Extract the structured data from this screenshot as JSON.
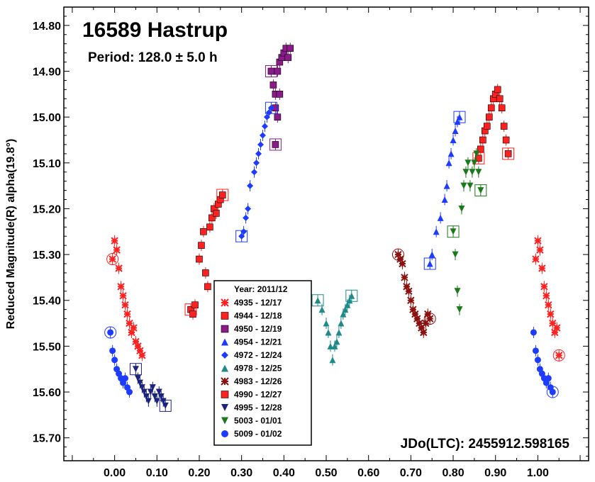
{
  "chart_data": {
    "type": "scatter",
    "title": "16589 Hastrup",
    "subtitle": "Period: 128.0 ± 5.0 h",
    "annotation": "JDo(LTC): 2455912.598165",
    "xlabel": "",
    "ylabel": "Reduced Magnitude(R) alpha(19.8°)",
    "xlim": [
      -0.12,
      1.12
    ],
    "ylim": [
      15.75,
      14.76
    ],
    "y_inverted": true,
    "x_ticks": [
      "0.00",
      "0.10",
      "0.20",
      "0.30",
      "0.40",
      "0.50",
      "0.60",
      "0.70",
      "0.80",
      "0.90",
      "1.00"
    ],
    "y_ticks": [
      "14.80",
      "14.90",
      "15.00",
      "15.10",
      "15.20",
      "15.30",
      "15.40",
      "15.50",
      "15.60",
      "15.70"
    ],
    "legend_title": "Year: 2011/12",
    "legend_position": "bottom-center",
    "series": [
      {
        "name": "4935 - 12/17",
        "color": "#ff2020",
        "marker": "x",
        "x": [
          -0.005,
          0.0,
          0.005,
          0.01,
          0.015,
          0.02,
          0.025,
          0.03,
          0.035,
          0.04,
          0.045,
          0.05,
          0.055,
          0.06,
          0.065,
          0.995,
          1.0,
          1.005,
          1.01,
          1.015,
          1.02,
          1.025,
          1.03,
          1.035,
          1.04,
          1.045,
          1.05
        ],
        "y": [
          15.31,
          15.27,
          15.29,
          15.33,
          15.37,
          15.39,
          15.41,
          15.43,
          15.45,
          15.47,
          15.46,
          15.49,
          15.5,
          15.51,
          15.52,
          15.31,
          15.27,
          15.29,
          15.33,
          15.37,
          15.39,
          15.41,
          15.43,
          15.45,
          15.47,
          15.46,
          15.52
        ]
      },
      {
        "name": "4944 - 12/18",
        "color": "#ff2020",
        "marker": "square",
        "x": [
          0.18,
          0.185,
          0.19,
          0.2,
          0.205,
          0.21,
          0.215,
          0.22,
          0.225,
          0.23,
          0.235,
          0.24,
          0.245,
          0.25,
          0.255
        ],
        "y": [
          15.42,
          15.43,
          15.41,
          15.31,
          15.28,
          15.25,
          15.34,
          15.37,
          15.24,
          15.22,
          15.2,
          15.21,
          15.19,
          15.18,
          15.17
        ]
      },
      {
        "name": "4950 - 12/19",
        "color": "#8b1a8b",
        "marker": "square",
        "x": [
          0.37,
          0.375,
          0.38,
          0.38,
          0.385,
          0.39,
          0.395,
          0.4,
          0.405,
          0.41,
          0.415,
          0.385,
          0.39,
          0.38
        ],
        "y": [
          14.9,
          14.93,
          14.95,
          14.98,
          14.9,
          14.88,
          14.87,
          14.86,
          14.85,
          14.87,
          14.85,
          15.0,
          14.95,
          15.06
        ]
      },
      {
        "name": "4954 - 12/21",
        "color": "#1e3cff",
        "marker": "triangle-up",
        "x": [
          0.745,
          0.75,
          0.76,
          0.77,
          0.78,
          0.785,
          0.79,
          0.795,
          0.8,
          0.805,
          0.81,
          0.815
        ],
        "y": [
          15.32,
          15.3,
          15.25,
          15.22,
          15.18,
          15.15,
          15.1,
          15.08,
          15.05,
          15.03,
          15.01,
          15.0
        ]
      },
      {
        "name": "4972 - 12/24",
        "color": "#1e3cff",
        "marker": "diamond",
        "x": [
          0.3,
          0.305,
          0.31,
          0.315,
          0.32,
          0.33,
          0.335,
          0.34,
          0.345,
          0.35,
          0.355,
          0.36,
          0.365,
          0.37
        ],
        "y": [
          15.26,
          15.25,
          15.22,
          15.2,
          15.15,
          15.12,
          15.1,
          15.08,
          15.06,
          15.04,
          15.02,
          15.0,
          14.99,
          14.98
        ]
      },
      {
        "name": "4978 - 12/25",
        "color": "#1f8a8a",
        "marker": "triangle-up",
        "x": [
          0.48,
          0.49,
          0.5,
          0.505,
          0.51,
          0.515,
          0.52,
          0.525,
          0.53,
          0.535,
          0.54,
          0.545,
          0.55,
          0.555,
          0.56
        ],
        "y": [
          15.4,
          15.42,
          15.45,
          15.47,
          15.5,
          15.53,
          15.5,
          15.49,
          15.47,
          15.45,
          15.43,
          15.42,
          15.41,
          15.4,
          15.39
        ]
      },
      {
        "name": "4983 - 12/26",
        "color": "#8b1010",
        "marker": "x",
        "x": [
          0.67,
          0.675,
          0.68,
          0.685,
          0.69,
          0.695,
          0.7,
          0.705,
          0.71,
          0.715,
          0.72,
          0.725,
          0.73,
          0.735,
          0.74,
          0.745
        ],
        "y": [
          15.3,
          15.31,
          15.32,
          15.35,
          15.37,
          15.38,
          15.4,
          15.42,
          15.43,
          15.44,
          15.45,
          15.46,
          15.47,
          15.45,
          15.43,
          15.44
        ]
      },
      {
        "name": "4990 - 12/27",
        "color": "#ff2020",
        "marker": "square",
        "x": [
          0.86,
          0.865,
          0.87,
          0.875,
          0.88,
          0.885,
          0.89,
          0.895,
          0.9,
          0.905,
          0.91,
          0.915,
          0.92,
          0.925,
          0.93
        ],
        "y": [
          15.09,
          15.07,
          15.05,
          15.03,
          15.02,
          15.0,
          14.98,
          14.96,
          14.95,
          14.94,
          14.96,
          14.98,
          15.02,
          15.05,
          15.08
        ]
      },
      {
        "name": "4995 - 12/28",
        "color": "#1a237e",
        "marker": "triangle-down",
        "x": [
          0.05,
          0.055,
          0.06,
          0.065,
          0.07,
          0.075,
          0.08,
          0.085,
          0.09,
          0.095,
          0.1,
          0.105,
          0.11,
          0.115,
          0.12
        ],
        "y": [
          15.55,
          15.57,
          15.58,
          15.59,
          15.6,
          15.61,
          15.62,
          15.6,
          15.59,
          15.61,
          15.62,
          15.6,
          15.61,
          15.62,
          15.63
        ]
      },
      {
        "name": "5003 - 01/01",
        "color": "#1a7a1a",
        "marker": "triangle-down",
        "x": [
          0.8,
          0.805,
          0.81,
          0.815,
          0.82,
          0.825,
          0.83,
          0.835,
          0.84,
          0.845,
          0.85,
          0.855,
          0.86,
          0.865
        ],
        "y": [
          15.25,
          15.3,
          15.38,
          15.42,
          15.2,
          15.15,
          15.12,
          15.1,
          15.15,
          15.12,
          15.1,
          15.08,
          15.12,
          15.16
        ]
      },
      {
        "name": "5009 - 01/02",
        "color": "#1e3cff",
        "marker": "circle",
        "x": [
          -0.01,
          -0.005,
          0.0,
          0.005,
          0.01,
          0.015,
          0.02,
          0.025,
          0.03,
          0.035,
          0.99,
          0.995,
          1.0,
          1.005,
          1.01,
          1.015,
          1.02,
          1.025,
          1.03,
          1.035
        ],
        "y": [
          15.47,
          15.51,
          15.53,
          15.55,
          15.56,
          15.57,
          15.58,
          15.57,
          15.59,
          15.6,
          15.47,
          15.51,
          15.53,
          15.55,
          15.56,
          15.57,
          15.58,
          15.57,
          15.59,
          15.6
        ]
      }
    ]
  }
}
